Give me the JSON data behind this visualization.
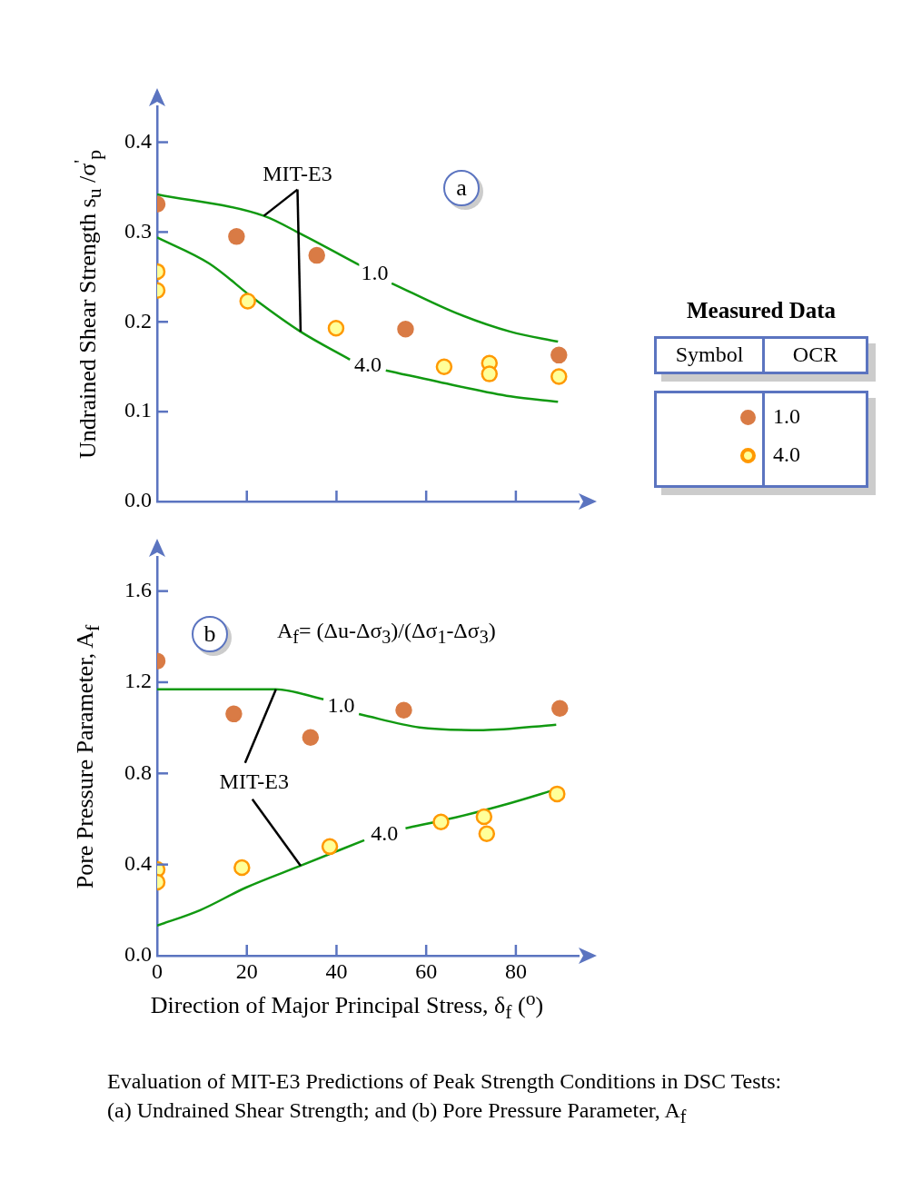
{
  "chart_data": [
    {
      "type": "scatter",
      "ylabel": "Undrained Shear Strength s$_{u}$ /σ$^{'}$$_{p}$",
      "legend_title": "Measured Data",
      "legend": "right",
      "grid": false,
      "tick_labels": "y",
      "annotations": [
        {
          "text": "MIT-E3",
          "x": 23.8,
          "y": 0.318
        },
        {
          "text": "1.0",
          "x": 48.5,
          "y": 0.253
        },
        {
          "text": "4.0",
          "x": 47,
          "y": 0.151
        },
        "a",
        "Symbol",
        "OCR"
      ],
      "xlim": [
        0,
        94
      ],
      "xticks": [
        20,
        40,
        60,
        80
      ],
      "ylim": [
        0,
        0.44
      ],
      "yticks": [
        {
          "value": 0,
          "label": "0.0"
        },
        0.1,
        0.2,
        0.3,
        0.4
      ],
      "series": [
        {
          "type": "line",
          "color": "#119911",
          "x": [
            0,
            23.8,
            32,
            45.2,
            48.5,
            52.3,
            66.6,
            78.8,
            89.4
          ],
          "values": [
            0.342,
            0.318,
            0.298,
            0.263,
            null,
            0.243,
            0.21,
            0.189,
            0.178
          ]
        },
        {
          "type": "line",
          "color": "#119911",
          "x": [
            0,
            11.6,
            21.8,
            32,
            43,
            47,
            51,
            66.6,
            78.8,
            89.4
          ],
          "values": [
            0.294,
            0.265,
            0.225,
            0.189,
            0.158,
            null,
            0.146,
            0.129,
            0.117,
            0.111
          ]
        },
        {
          "name": "1.0",
          "color": "#d97b45",
          "x": [
            0,
            17.7,
            35.6,
            55.4,
            89.6
          ],
          "values": [
            0.331,
            0.295,
            0.274,
            0.192,
            0.163
          ]
        },
        {
          "name": "4.0",
          "color": "#ff9900",
          "x": [
            0,
            0,
            20.2,
            39.9,
            64,
            74.1,
            74.1,
            89.6
          ],
          "values": [
            0.256,
            0.235,
            0.223,
            0.193,
            0.15,
            0.154,
            0.142,
            0.139
          ]
        }
      ]
    },
    {
      "type": "scatter",
      "ylabel": "Pore Pressure Parameter, A$_{f}$",
      "xlabel": "Direction of Major Principal Stress, δ$_{f}$ ($^{o}$)",
      "grid": false,
      "annotations": [
        "b",
        "A$_{f}$= (Δu-Δσ$_{3}$)/(Δσ$_{1}$-Δσ$_{3}$)",
        {
          "text": "MIT-E3",
          "x": 26.5,
          "y": 1.169
        },
        "Evaluation of MIT-E3 Predictions of Peak Strength Conditions in DSC Tests: (a) Undrained Shear Strength; and (b) Pore Pressure Parameter, A$_{f}$",
        {
          "text": "1.0",
          "x": 41,
          "y": 1.095
        },
        {
          "text": "4.0",
          "x": 50.7,
          "y": 0.53
        }
      ],
      "xlim": [
        0,
        94
      ],
      "xticks": [
        0,
        20,
        40,
        60,
        80
      ],
      "ylim": [
        0,
        1.75
      ],
      "yticks": [
        {
          "value": 0,
          "label": "0.0"
        },
        0.4,
        0.8,
        1.2,
        1.6
      ],
      "series": [
        {
          "type": "line",
          "color": "#119911",
          "x": [
            0,
            13,
            26.5,
            37.1,
            41,
            45,
            58.5,
            72.7,
            89
          ],
          "values": [
            1.169,
            1.169,
            1.169,
            1.125,
            null,
            1.06,
            1.002,
            0.99,
            1.014
          ]
        },
        {
          "type": "line",
          "color": "#119911",
          "x": [
            0,
            9.6,
            19.8,
            32,
            46.2,
            50.7,
            55.4,
            66.6,
            78.8,
            89
          ],
          "values": [
            0.132,
            0.2,
            0.299,
            0.395,
            0.507,
            null,
            0.559,
            0.607,
            0.67,
            0.73
          ]
        },
        {
          "color": "#d97b45",
          "x": [
            0,
            17.1,
            34.2,
            55,
            89.8
          ],
          "values": [
            1.293,
            1.061,
            0.958,
            1.077,
            1.085
          ]
        },
        {
          "color": "#ff9900",
          "x": [
            0,
            0,
            18.9,
            38.5,
            63.3,
            72.9,
            73.5,
            89.2
          ],
          "values": [
            0.379,
            0.323,
            0.387,
            0.479,
            0.587,
            0.61,
            0.535,
            0.71
          ]
        }
      ]
    }
  ]
}
